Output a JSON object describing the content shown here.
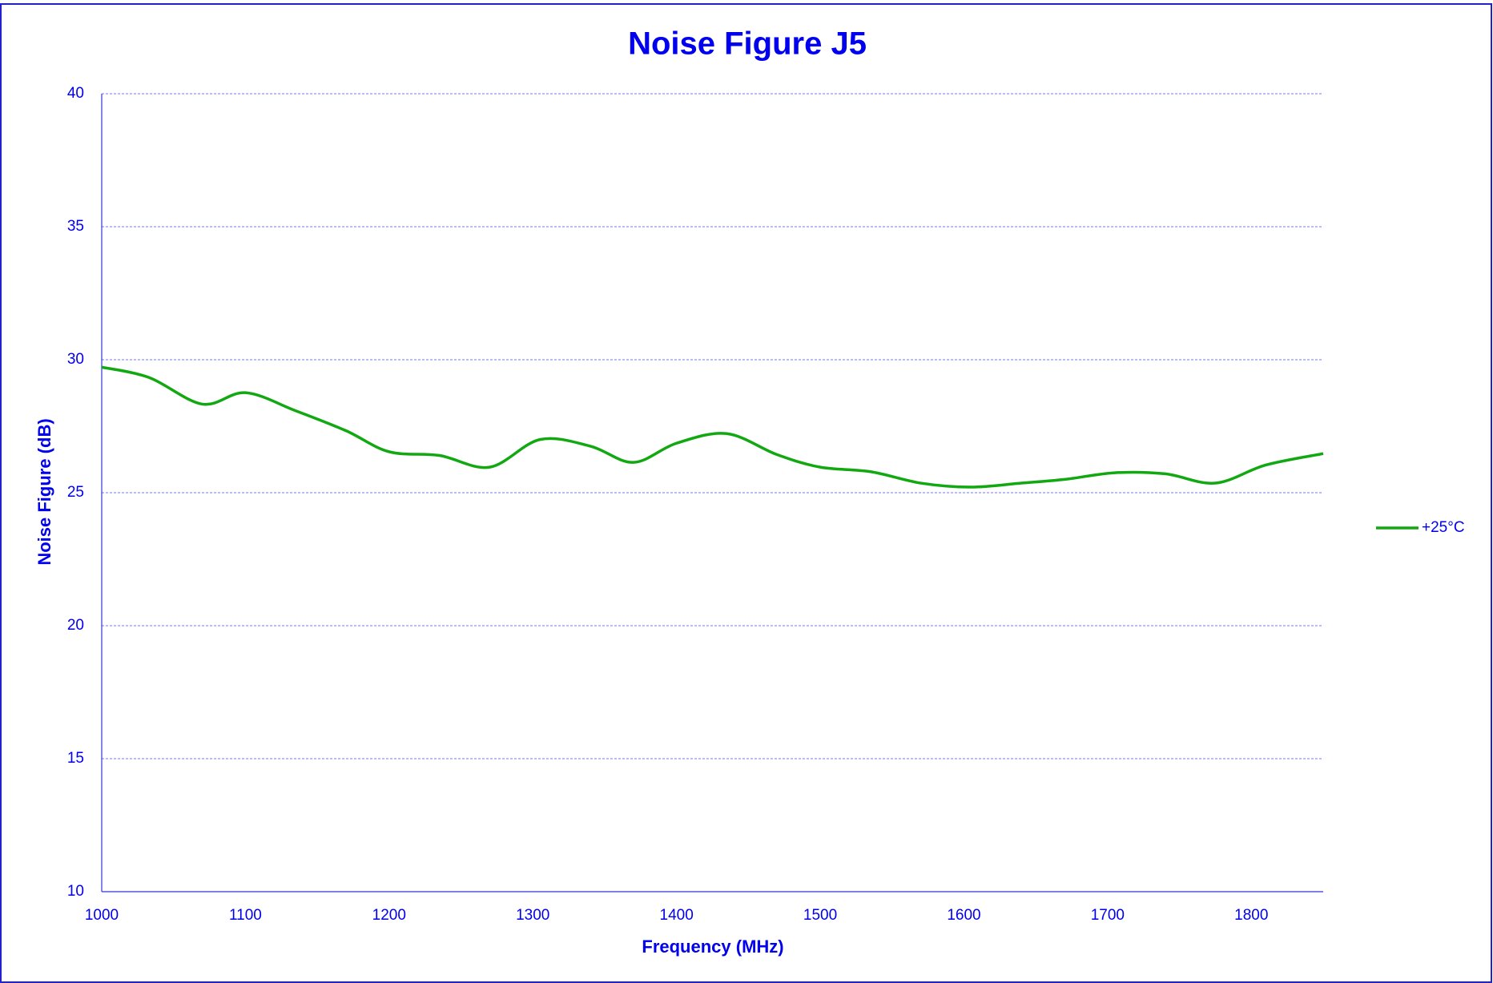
{
  "chart_data": {
    "type": "line",
    "title": "Noise Figure J5",
    "xlabel": "Frequency (MHz)",
    "ylabel": "Noise Figure (dB)",
    "x": [
      1000,
      1033,
      1070,
      1100,
      1135,
      1170,
      1200,
      1235,
      1270,
      1305,
      1340,
      1370,
      1400,
      1435,
      1470,
      1500,
      1535,
      1570,
      1605,
      1640,
      1670,
      1705,
      1740,
      1775,
      1810,
      1850
    ],
    "series": [
      {
        "name": "+25°C",
        "color": "#11a811",
        "values": [
          29.72,
          29.33,
          28.33,
          28.76,
          28.08,
          27.33,
          26.54,
          26.4,
          25.96,
          27.0,
          26.75,
          26.14,
          26.86,
          27.22,
          26.43,
          25.96,
          25.79,
          25.36,
          25.21,
          25.36,
          25.5,
          25.75,
          25.71,
          25.36,
          26.04,
          26.47
        ]
      }
    ],
    "xlim": [
      1000,
      1850
    ],
    "xticks": [
      1000,
      1100,
      1200,
      1300,
      1400,
      1500,
      1600,
      1700,
      1800
    ],
    "ylim": [
      10,
      40
    ],
    "yticks": [
      10,
      15,
      20,
      25,
      30,
      35,
      40
    ],
    "grid": true,
    "legend": "right",
    "text_color": "#0000ee"
  }
}
